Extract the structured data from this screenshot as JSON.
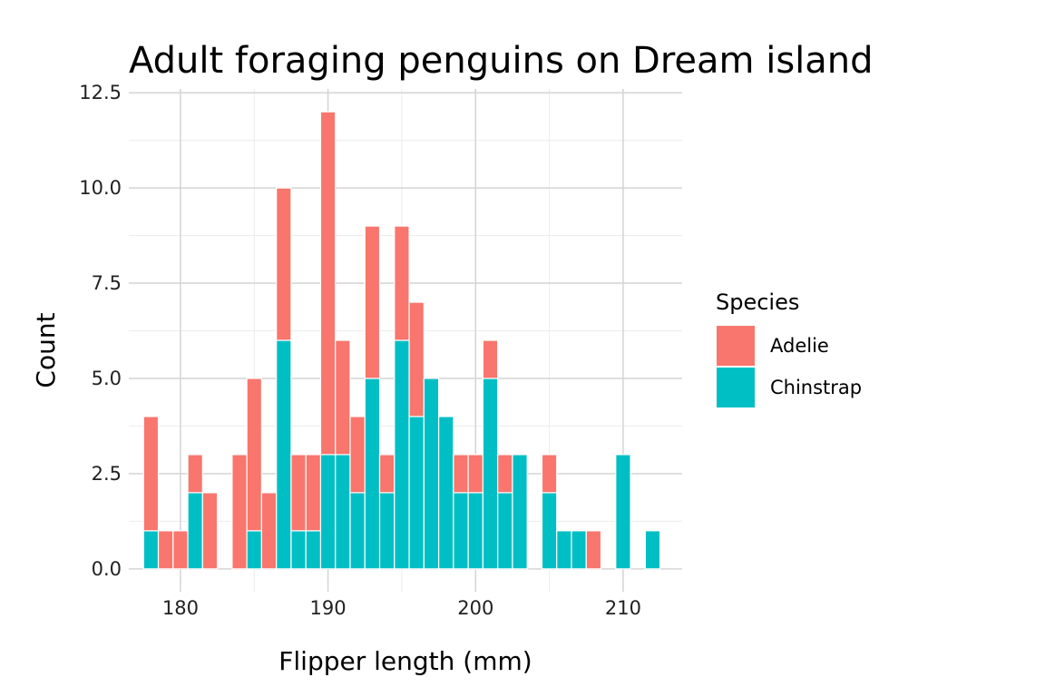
{
  "chart_data": {
    "type": "bar",
    "stacked": true,
    "title": "Adult foraging penguins on Dream island",
    "xlabel": "Flipper length (mm)",
    "ylabel": "Count",
    "xlim": [
      176.5,
      214
    ],
    "ylim": [
      -0.6,
      12.6
    ],
    "x_ticks": [
      180,
      190,
      200,
      210
    ],
    "y_ticks": [
      0.0,
      2.5,
      5.0,
      7.5,
      10.0,
      12.5
    ],
    "y_tick_labels": [
      "0.0",
      "2.5",
      "5.0",
      "7.5",
      "10.0",
      "12.5"
    ],
    "grid": true,
    "legend": {
      "title": "Species",
      "position": "right"
    },
    "x": [
      178,
      179,
      180,
      181,
      182,
      184,
      185,
      186,
      187,
      188,
      189,
      190,
      191,
      192,
      193,
      194,
      195,
      196,
      197,
      198,
      199,
      200,
      201,
      202,
      203,
      205,
      206,
      207,
      208,
      210,
      212
    ],
    "series": [
      {
        "name": "Chinstrap",
        "color": "#00BFC4",
        "values": [
          1,
          0,
          0,
          2,
          0,
          0,
          1,
          0,
          6,
          1,
          1,
          3,
          3,
          2,
          5,
          2,
          6,
          4,
          5,
          4,
          2,
          2,
          5,
          2,
          3,
          2,
          1,
          1,
          0,
          3,
          1
        ]
      },
      {
        "name": "Adelie",
        "color": "#F8766D",
        "values": [
          3,
          1,
          1,
          1,
          2,
          3,
          4,
          2,
          4,
          2,
          2,
          9,
          3,
          2,
          4,
          1,
          3,
          3,
          0,
          0,
          1,
          1,
          1,
          1,
          0,
          1,
          0,
          0,
          1,
          0,
          0
        ]
      }
    ]
  }
}
